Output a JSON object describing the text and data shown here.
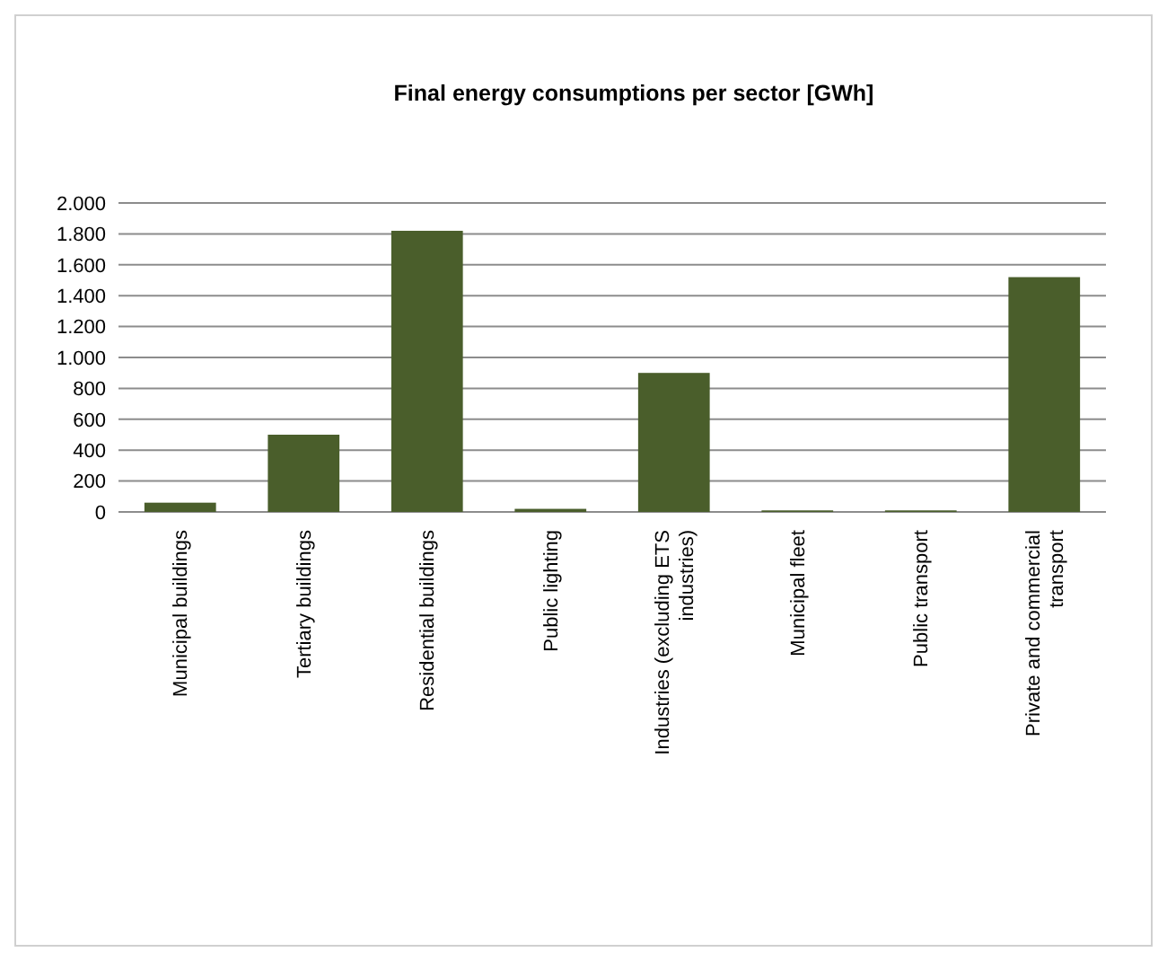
{
  "chart_data": {
    "type": "bar",
    "title": "Final energy consumptions per sector [GWh]",
    "categories": [
      "Municipal buildings",
      "Tertiary buildings",
      "Residential buildings",
      "Public lighting",
      "Industries (excluding ETS industries)",
      "Municipal fleet",
      "Public transport",
      "Private and commercial transport"
    ],
    "values": [
      60,
      500,
      1820,
      20,
      900,
      10,
      10,
      1520
    ],
    "color": "#4a5e2b",
    "ylim": [
      0,
      2000
    ],
    "yticks": [
      0,
      {
        "value": 200,
        "label": "200"
      },
      {
        "value": 400,
        "label": "400"
      },
      {
        "value": 600,
        "label": "600"
      },
      {
        "value": 800,
        "label": "800"
      },
      {
        "value": 1000,
        "label": "1.000"
      },
      {
        "value": 1200,
        "label": "1.200"
      },
      {
        "value": 1400,
        "label": "1.400"
      },
      {
        "value": 1600,
        "label": "1.600"
      },
      {
        "value": 1800,
        "label": "1.800"
      },
      {
        "value": 2000,
        "label": "2.000"
      }
    ],
    "grid": "y"
  }
}
